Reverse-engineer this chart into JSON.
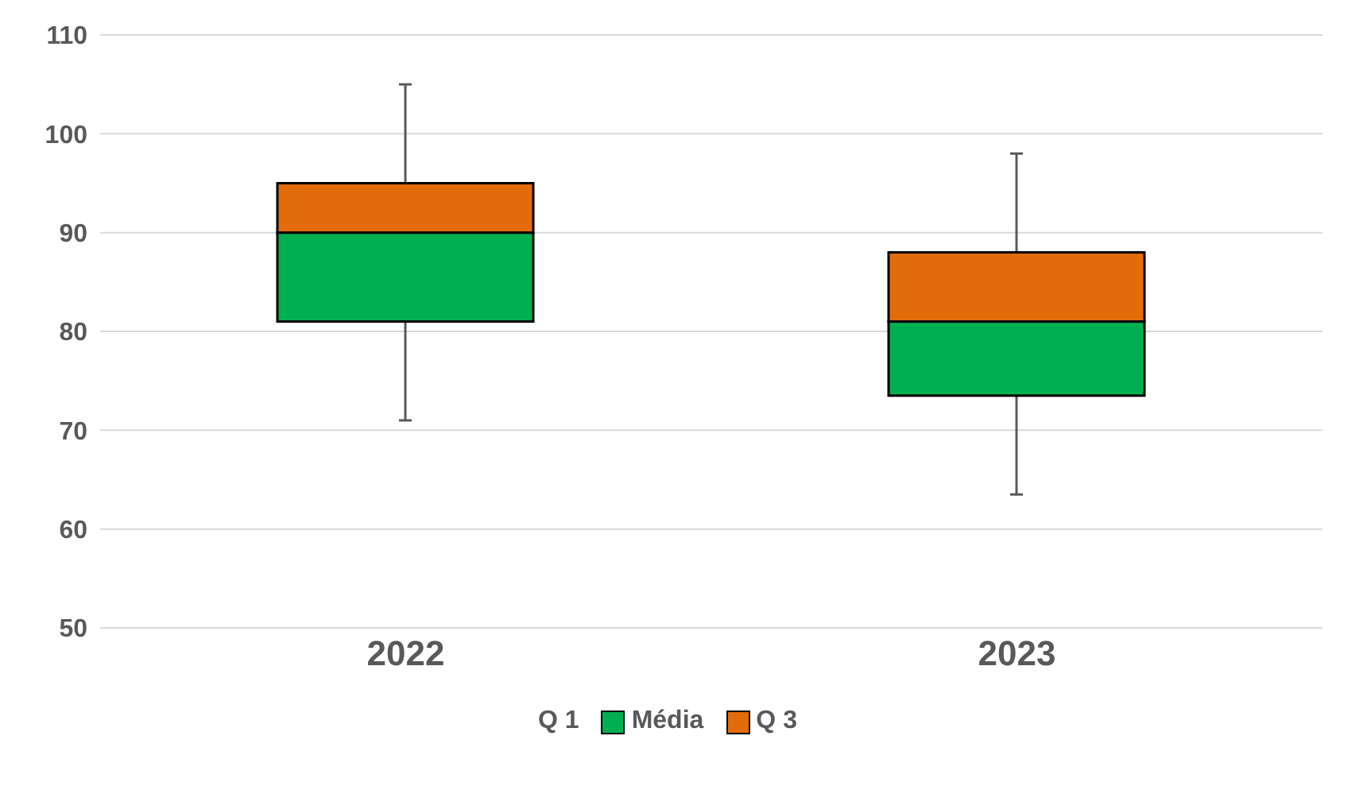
{
  "chart_data": {
    "type": "bar",
    "categories": [
      "2022",
      "2023"
    ],
    "series": [
      {
        "name": "Q 1",
        "values": [
          null,
          null
        ]
      },
      {
        "name": "Média",
        "color": "#00b050",
        "base": [
          81,
          73.5
        ],
        "values": [
          9,
          7.5
        ],
        "errors": [
          [
            71,
            81
          ],
          [
            63.5,
            73.5
          ]
        ]
      },
      {
        "name": "Q 3",
        "color": "#e36c0a",
        "base": [
          90,
          81
        ],
        "values": [
          5,
          7
        ],
        "errors": [
          [
            95,
            105
          ],
          [
            88,
            98
          ]
        ]
      }
    ],
    "ylim": [
      50,
      110
    ],
    "yticks": [
      50,
      60,
      70,
      80,
      90,
      100,
      110
    ],
    "grid": "y",
    "legend": "bottom"
  }
}
